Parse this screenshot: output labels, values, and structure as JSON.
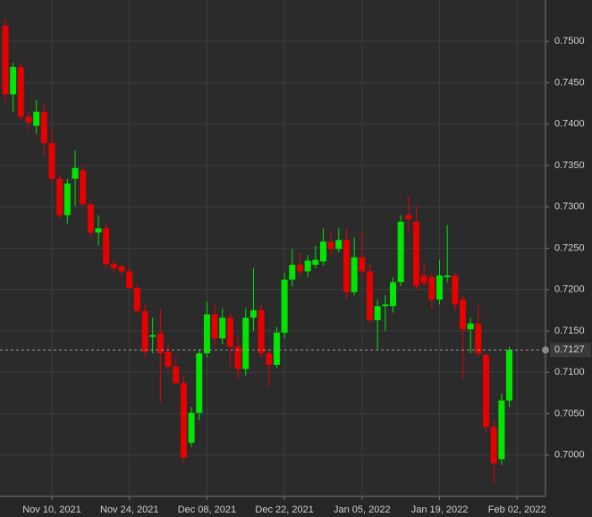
{
  "chart_data": {
    "type": "candlestick",
    "categories": [
      null,
      null,
      null,
      null,
      null,
      null,
      "Nov 10, 2021",
      null,
      null,
      null,
      null,
      null,
      null,
      null,
      null,
      null,
      "Nov 24, 2021",
      null,
      null,
      null,
      null,
      null,
      null,
      null,
      null,
      null,
      "Dec 08, 2021",
      null,
      null,
      null,
      null,
      null,
      null,
      null,
      null,
      null,
      "Dec 22, 2021",
      null,
      null,
      null,
      null,
      null,
      null,
      null,
      null,
      null,
      "Jan 05, 2022",
      null,
      null,
      null,
      null,
      null,
      null,
      null,
      null,
      null,
      "Jan 19, 2022",
      null,
      null,
      null,
      null,
      null,
      null,
      null,
      null,
      null,
      "Feb 02, 2022"
    ],
    "open": [
      0.7519,
      0.7436,
      0.7469,
      0.7409,
      0.7398,
      0.7415,
      0.7377,
      0.7334,
      0.729,
      0.7334,
      0.7344,
      0.7303,
      0.7269,
      0.7274,
      0.7231,
      0.7228,
      0.7222,
      0.7202,
      0.7174,
      0.7143,
      0.7147,
      0.7125,
      0.7107,
      0.7087,
      0.7015,
      0.7051,
      0.7123,
      0.717,
      0.7141,
      0.7166,
      0.7131,
      0.7104,
      0.7166,
      0.7175,
      0.7123,
      0.7109,
      0.7148,
      0.7212,
      0.723,
      0.7222,
      0.723,
      0.7234,
      0.7258,
      0.7249,
      0.726,
      0.7197,
      0.7239,
      0.7222,
      0.7163,
      0.718,
      0.718,
      0.7209,
      0.729,
      0.7282,
      0.7217,
      0.7215,
      0.7188,
      0.7215,
      0.7217,
      0.7188,
      0.7152,
      0.7159,
      0.7121,
      0.7034,
      0.6995,
      0.7066,
      null
    ],
    "high": [
      0.7528,
      0.7474,
      0.7474,
      0.7415,
      0.7429,
      0.7425,
      0.7393,
      0.7339,
      0.7334,
      0.7368,
      0.735,
      0.7307,
      0.729,
      0.728,
      0.7236,
      0.7231,
      0.7226,
      0.7206,
      0.7182,
      0.7166,
      0.7177,
      0.7134,
      0.7118,
      0.7096,
      0.7058,
      0.7128,
      0.7185,
      0.7182,
      0.7177,
      0.7172,
      0.7145,
      0.7177,
      0.7226,
      0.7182,
      0.7128,
      0.7155,
      0.722,
      0.7249,
      0.7244,
      0.7242,
      0.7253,
      0.7274,
      0.7271,
      0.7274,
      0.7274,
      0.7263,
      0.7271,
      0.7231,
      0.7188,
      0.7193,
      0.7215,
      0.729,
      0.7314,
      0.7301,
      0.7231,
      0.722,
      0.7236,
      0.7278,
      0.722,
      0.7193,
      0.7166,
      0.7182,
      0.7123,
      0.7042,
      0.7074,
      0.7131,
      null
    ],
    "low": [
      0.7425,
      0.7415,
      0.7404,
      0.7393,
      0.7388,
      0.7361,
      0.7328,
      0.7285,
      0.728,
      0.7301,
      0.7301,
      0.7263,
      0.7253,
      0.7226,
      0.722,
      0.7215,
      0.7199,
      0.7172,
      0.7118,
      0.7123,
      0.7064,
      0.7102,
      0.7085,
      0.699,
      0.701,
      0.7042,
      0.7118,
      0.7131,
      0.7134,
      0.7107,
      0.7091,
      0.7096,
      0.715,
      0.7118,
      0.7083,
      0.7105,
      0.7141,
      0.7204,
      0.7215,
      0.7215,
      0.7226,
      0.7229,
      0.7242,
      0.7245,
      0.7188,
      0.7193,
      0.7215,
      0.7159,
      0.7128,
      0.715,
      0.7172,
      0.7204,
      0.7269,
      0.7199,
      0.7204,
      0.7177,
      0.7182,
      0.7209,
      0.7174,
      0.7091,
      0.7123,
      0.7118,
      0.7026,
      0.6966,
      0.6988,
      0.7058,
      null
    ],
    "close": [
      0.7436,
      0.7469,
      0.7409,
      0.7402,
      0.7415,
      0.7377,
      0.7334,
      0.729,
      0.7328,
      0.7347,
      0.7303,
      0.7269,
      0.7274,
      0.7231,
      0.7226,
      0.7222,
      0.7202,
      0.7174,
      0.7125,
      0.7145,
      0.7123,
      0.7107,
      0.7087,
      0.6997,
      0.7051,
      0.7123,
      0.717,
      0.7141,
      0.7166,
      0.7131,
      0.7104,
      0.7166,
      0.7175,
      0.7123,
      0.7109,
      0.7148,
      0.7212,
      0.723,
      0.7222,
      0.7235,
      0.7236,
      0.7258,
      0.7249,
      0.726,
      0.7197,
      0.7239,
      0.7222,
      0.7163,
      0.718,
      0.7182,
      0.7209,
      0.7282,
      0.7285,
      0.7204,
      0.7208,
      0.7188,
      0.7217,
      0.7217,
      0.7182,
      0.7152,
      0.7159,
      0.7123,
      0.7034,
      0.699,
      0.7066,
      0.7127,
      null
    ],
    "up_color": "#00e600",
    "down_color": "#e60000",
    "ylim": [
      0.695,
      0.755
    ],
    "yticks": [
      {
        "value": 0.7,
        "label": "0.7000"
      },
      {
        "value": 0.705,
        "label": "0.7050"
      },
      {
        "value": 0.71,
        "label": "0.7100"
      },
      {
        "value": 0.715,
        "label": "0.7150"
      },
      {
        "value": 0.72,
        "label": "0.7200"
      },
      {
        "value": 0.725,
        "label": "0.7250"
      },
      {
        "value": 0.73,
        "label": "0.7300"
      },
      {
        "value": 0.735,
        "label": "0.7350"
      },
      {
        "value": 0.74,
        "label": "0.7400"
      },
      {
        "value": 0.745,
        "label": "0.7450"
      },
      {
        "value": 0.75,
        "label": "0.7500"
      }
    ],
    "last_price": 0.7127,
    "grid": true
  }
}
